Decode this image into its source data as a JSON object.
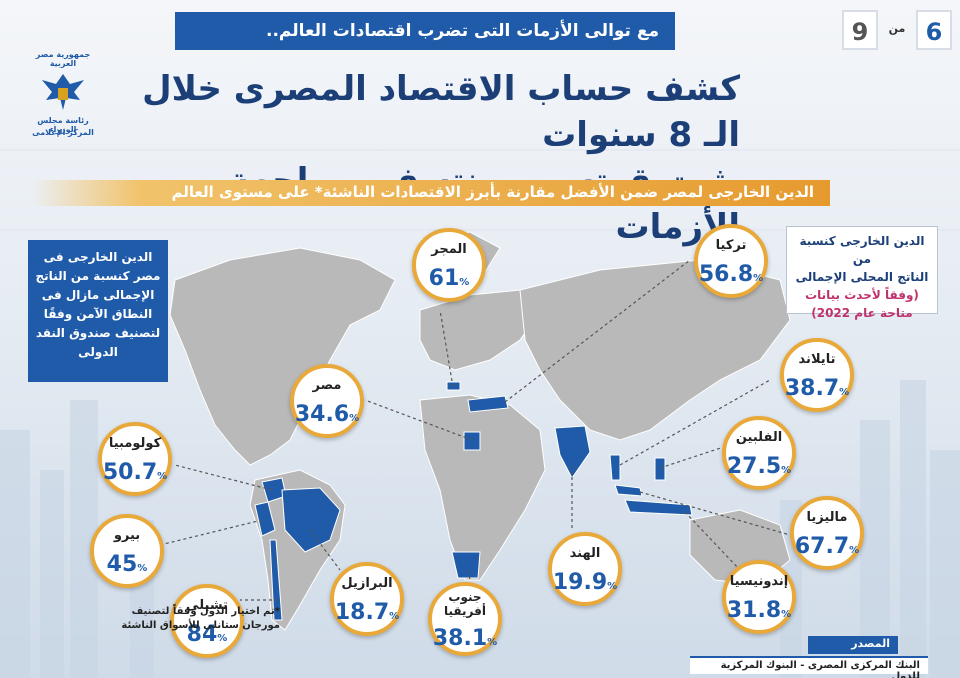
{
  "header": {
    "banner": "مع توالى الأزمات التى تضرب اقتصادات العالم..",
    "page_current": "6",
    "page_of": "من",
    "page_total": "9",
    "title_line1": "كشف حساب الاقتصاد المصرى خلال الـ 8 سنوات",
    "title_line2": "يثبت قوته ومرونته فى مواجهة الأزمات"
  },
  "logo": {
    "gov": "جمهورية مصر العربية",
    "cabinet": "رئاسة مجلس الوزراء",
    "center": "المركز الإعلامى"
  },
  "subtitle": "الدين الخارجى لمصر ضمن الأفضل مقارنة بأبرز الاقتصادات الناشئة* على مستوى العالم",
  "info_left": "الدين الخارجى فى مصر كنسبة من الناتج الإجمالى مازال فى النطاق الآمن وفقًا لتصنيف صندوق النقد الدولى",
  "info_right": {
    "line1": "الدين الخارجى كنسبة من",
    "line2": "الناتج المحلى الإجمالى",
    "note1": "(وفقاً لأحدث بيانات",
    "note2": "متاحة عام 2022)"
  },
  "countries": [
    {
      "name": "المجر",
      "value": "61",
      "unit": "%"
    },
    {
      "name": "تركيا",
      "value": "56.8",
      "unit": "%"
    },
    {
      "name": "تايلاند",
      "value": "38.7",
      "unit": "%"
    },
    {
      "name": "الفلبين",
      "value": "27.5",
      "unit": "%"
    },
    {
      "name": "ماليزيا",
      "value": "67.7",
      "unit": "%"
    },
    {
      "name": "إندونيسيا",
      "value": "31.8",
      "unit": "%"
    },
    {
      "name": "الهند",
      "value": "19.9",
      "unit": "%"
    },
    {
      "name": "جنوب أفريقيا",
      "value": "38.1",
      "unit": "%"
    },
    {
      "name": "البرازيل",
      "value": "18.7",
      "unit": "%"
    },
    {
      "name": "تشيلى",
      "value": "84",
      "unit": "%"
    },
    {
      "name": "بيرو",
      "value": "45",
      "unit": "%"
    },
    {
      "name": "كولومبيا",
      "value": "50.7",
      "unit": "%"
    },
    {
      "name": "مصر",
      "value": "34.6",
      "unit": "%"
    }
  ],
  "footnote": "*تم اختيار الدول وفقاً لتصنيف مورجان ستانلى للأسواق الناشئة",
  "source": {
    "label": "المصدر",
    "text": "البنك المركزى المصرى - البنوك المركزية للدول"
  },
  "colors": {
    "primary": "#1f5ba8",
    "accent": "#e8a93a",
    "land": "#b9b9b9",
    "highlight": "#1f5ba8"
  }
}
